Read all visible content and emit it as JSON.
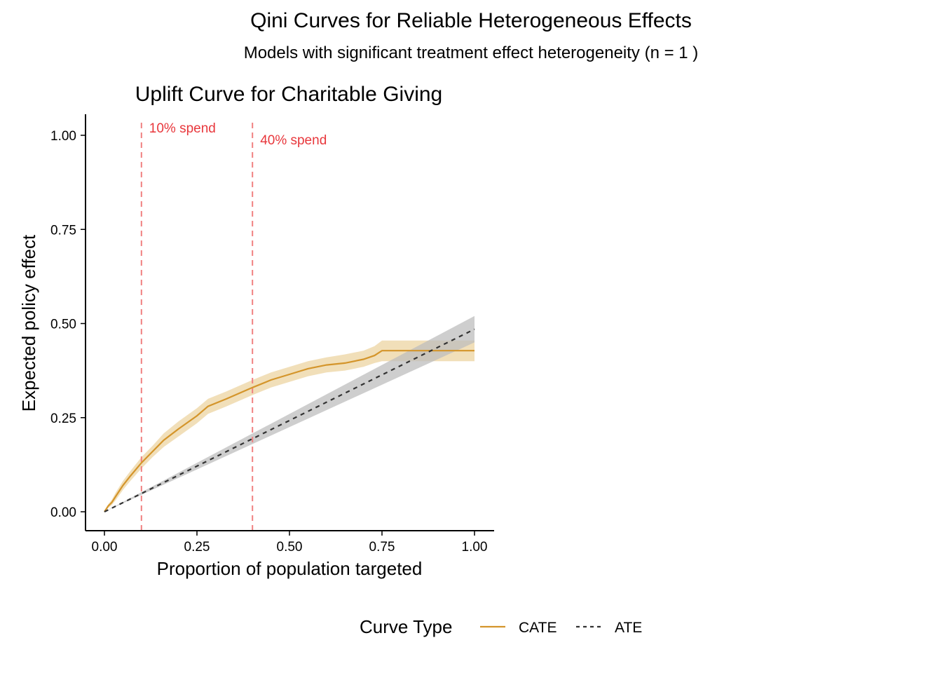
{
  "figure": {
    "title": "Qini Curves for Reliable Heterogeneous Effects",
    "subtitle": "Models with significant treatment effect heterogeneity (n = 1 )"
  },
  "chart_data": {
    "type": "line",
    "title": "Uplift Curve for Charitable Giving",
    "xlabel": "Proportion of population targeted",
    "ylabel": "Expected policy effect",
    "xlim": [
      -0.05,
      1.05
    ],
    "ylim": [
      -0.05,
      1.05
    ],
    "xticks": [
      0.0,
      0.25,
      0.5,
      0.75,
      1.0
    ],
    "xtick_labels": [
      "0.00",
      "0.25",
      "0.50",
      "0.75",
      "1.00"
    ],
    "yticks": [
      0.0,
      0.25,
      0.5,
      0.75,
      1.0
    ],
    "ytick_labels": [
      "0.00",
      "0.25",
      "0.50",
      "0.75",
      "1.00"
    ],
    "grid": false,
    "legend": {
      "title": "Curve Type",
      "position": "bottom",
      "entries": [
        {
          "label": "CATE",
          "style": "solid",
          "color": "#D4952B"
        },
        {
          "label": "ATE",
          "style": "dashed",
          "color": "#333333"
        }
      ]
    },
    "vlines": [
      {
        "x": 0.1,
        "label": "10% spend",
        "color": "#F08080"
      },
      {
        "x": 0.4,
        "label": "40% spend",
        "color": "#F08080"
      }
    ],
    "series": [
      {
        "name": "CATE",
        "color": "#D4952B",
        "band_color": "#E8C98A",
        "x": [
          0.0,
          0.01,
          0.02,
          0.03,
          0.05,
          0.07,
          0.1,
          0.13,
          0.16,
          0.2,
          0.25,
          0.28,
          0.33,
          0.4,
          0.45,
          0.5,
          0.55,
          0.6,
          0.65,
          0.7,
          0.73,
          0.75,
          0.8,
          0.9,
          1.0
        ],
        "y": [
          0.0,
          0.015,
          0.025,
          0.04,
          0.07,
          0.095,
          0.13,
          0.16,
          0.19,
          0.22,
          0.255,
          0.28,
          0.3,
          0.33,
          0.35,
          0.365,
          0.38,
          0.39,
          0.395,
          0.405,
          0.415,
          0.428,
          0.428,
          0.428,
          0.428
        ],
        "lower": [
          0.0,
          0.01,
          0.018,
          0.03,
          0.058,
          0.082,
          0.115,
          0.145,
          0.172,
          0.2,
          0.235,
          0.26,
          0.28,
          0.31,
          0.33,
          0.345,
          0.36,
          0.37,
          0.375,
          0.385,
          0.395,
          0.4,
          0.4,
          0.4,
          0.4
        ],
        "upper": [
          0.0,
          0.02,
          0.032,
          0.05,
          0.082,
          0.108,
          0.145,
          0.175,
          0.208,
          0.24,
          0.275,
          0.3,
          0.32,
          0.35,
          0.37,
          0.385,
          0.4,
          0.41,
          0.418,
          0.428,
          0.44,
          0.455,
          0.455,
          0.455,
          0.455
        ]
      },
      {
        "name": "ATE",
        "color": "#333333",
        "band_color": "#BDBDBD",
        "x": [
          0.0,
          1.0
        ],
        "y": [
          0.0,
          0.485
        ],
        "lower": [
          0.0,
          0.45
        ],
        "upper": [
          0.0,
          0.52
        ]
      }
    ]
  }
}
